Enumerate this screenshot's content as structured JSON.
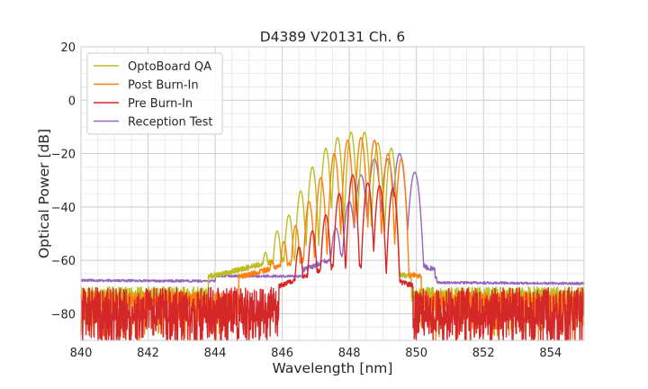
{
  "chart_data": {
    "type": "line",
    "title": "D4389 V20131 Ch. 6",
    "xlabel": "Wavelength [nm]",
    "ylabel": "Optical Power [dB]",
    "xlim": [
      840,
      855
    ],
    "ylim": [
      -90,
      20
    ],
    "grid": true,
    "legend_position": "top-left",
    "x_ticks": [
      840,
      842,
      844,
      846,
      848,
      850,
      852,
      854
    ],
    "x_tick_labels": [
      "840",
      "842",
      "844",
      "846",
      "848",
      "850",
      "852",
      "854"
    ],
    "y_ticks": [
      20,
      0,
      -20,
      -40,
      -60,
      -80
    ],
    "y_tick_labels": [
      "20",
      "0",
      "−20",
      "−40",
      "−60",
      "−80"
    ],
    "series": [
      {
        "name": "OptoBoard QA",
        "color": "#bcbd22",
        "noise_floor": -73,
        "peaks": [
          [
            844.4,
            -66
          ],
          [
            845.1,
            -63
          ],
          [
            845.5,
            -57
          ],
          [
            845.85,
            -49
          ],
          [
            846.2,
            -43
          ],
          [
            846.55,
            -34
          ],
          [
            846.9,
            -25
          ],
          [
            847.3,
            -18
          ],
          [
            847.65,
            -14
          ],
          [
            848.05,
            -12
          ],
          [
            848.45,
            -12
          ],
          [
            848.85,
            -16
          ],
          [
            849.25,
            -18
          ]
        ]
      },
      {
        "name": "Post Burn-In",
        "color": "#ff7f0e",
        "noise_floor": -75,
        "peaks": [
          [
            845.3,
            -66
          ],
          [
            845.7,
            -60
          ],
          [
            846.05,
            -53
          ],
          [
            846.4,
            -47
          ],
          [
            846.8,
            -38
          ],
          [
            847.15,
            -29
          ],
          [
            847.55,
            -20
          ],
          [
            847.95,
            -15
          ],
          [
            848.35,
            -14
          ],
          [
            848.75,
            -15
          ],
          [
            849.15,
            -20
          ],
          [
            849.55,
            -22
          ]
        ]
      },
      {
        "name": "Pre Burn-In",
        "color": "#d62728",
        "noise_floor": -80,
        "peaks": [
          [
            846.5,
            -55
          ],
          [
            846.9,
            -49
          ],
          [
            847.3,
            -43
          ],
          [
            847.7,
            -35
          ],
          [
            848.1,
            -28
          ],
          [
            848.55,
            -31
          ],
          [
            848.9,
            -32
          ],
          [
            849.3,
            -33
          ]
        ]
      },
      {
        "name": "Reception Test",
        "color": "#9467bd",
        "noise_floor": -67.5,
        "peaks": [
          [
            847.2,
            -60
          ],
          [
            847.6,
            -48
          ],
          [
            848.0,
            -38
          ],
          [
            848.35,
            -28
          ],
          [
            848.75,
            -22
          ],
          [
            849.15,
            -22
          ],
          [
            849.5,
            -20
          ],
          [
            849.95,
            -27
          ]
        ]
      }
    ]
  }
}
